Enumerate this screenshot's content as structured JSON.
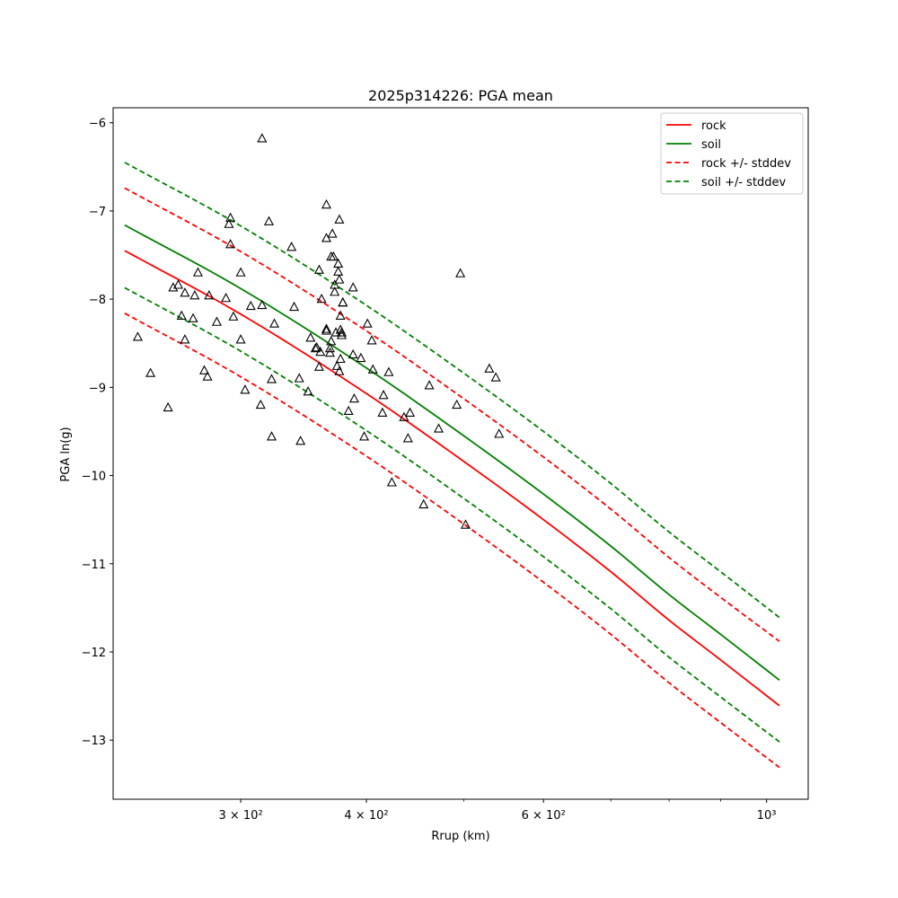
{
  "chart_data": {
    "type": "scatter",
    "title": "2025p314226: PGA mean",
    "xlabel": "Rrup (km)",
    "ylabel": "PGA ln(g)",
    "xscale": "log",
    "xlim": [
      224,
      1100
    ],
    "ylim": [
      -13.67,
      -5.83
    ],
    "x_major_ticks": [
      {
        "value": 300,
        "label": "3 × 10²"
      },
      {
        "value": 400,
        "label": "4 × 10²"
      },
      {
        "value": 600,
        "label": "6 × 10²"
      },
      {
        "value": 1000,
        "label": "10³"
      }
    ],
    "x_minor_ticks": [
      500,
      700,
      800,
      900
    ],
    "y_ticks": [
      -6,
      -7,
      -8,
      -9,
      -10,
      -11,
      -12,
      -13
    ],
    "y_tick_labels": [
      "−6",
      "−7",
      "−8",
      "−9",
      "−10",
      "−11",
      "−12",
      "−13"
    ],
    "grid": false,
    "legend_position": "top-right",
    "legend": [
      {
        "label": "rock",
        "color": "#ff0000",
        "dash": "solid"
      },
      {
        "label": "soil",
        "color": "#008000",
        "dash": "solid"
      },
      {
        "label": "rock +/- stddev",
        "color": "#ff0000",
        "dash": "dashed"
      },
      {
        "label": "soil +/- stddev",
        "color": "#008000",
        "dash": "dashed"
      }
    ],
    "lines": [
      {
        "name": "rock",
        "role": "mean",
        "color": "#ff0000",
        "dash": "solid",
        "x": [
          230,
          300,
          400,
          500,
          600,
          700,
          800,
          900,
          1030
        ],
        "y": [
          -7.45,
          -8.17,
          -9.07,
          -9.84,
          -10.5,
          -11.09,
          -11.64,
          -12.09,
          -12.61
        ]
      },
      {
        "role": "upper",
        "color": "#ff0000",
        "dash": "dashed",
        "x": [
          230,
          300,
          400,
          500,
          600,
          700,
          800,
          900,
          1030
        ],
        "y": [
          -6.74,
          -7.46,
          -8.36,
          -9.13,
          -9.79,
          -10.38,
          -10.93,
          -11.38,
          -11.88
        ]
      },
      {
        "role": "lower",
        "color": "#ff0000",
        "dash": "dashed",
        "x": [
          230,
          300,
          400,
          500,
          600,
          700,
          800,
          900,
          1030
        ],
        "y": [
          -8.16,
          -8.88,
          -9.78,
          -10.55,
          -11.21,
          -11.8,
          -12.35,
          -12.8,
          -13.31
        ]
      },
      {
        "name": "soil",
        "role": "mean",
        "color": "#008000",
        "dash": "solid",
        "x": [
          230,
          300,
          400,
          500,
          600,
          700,
          800,
          900,
          1030
        ],
        "y": [
          -7.16,
          -7.88,
          -8.78,
          -9.55,
          -10.21,
          -10.8,
          -11.35,
          -11.8,
          -12.32
        ]
      },
      {
        "role": "upper",
        "color": "#008000",
        "dash": "dashed",
        "x": [
          230,
          300,
          400,
          500,
          600,
          700,
          800,
          900,
          1030
        ],
        "y": [
          -6.45,
          -7.17,
          -8.07,
          -8.84,
          -9.5,
          -10.09,
          -10.64,
          -11.09,
          -11.61
        ]
      },
      {
        "role": "lower",
        "color": "#008000",
        "dash": "dashed",
        "x": [
          230,
          300,
          400,
          500,
          600,
          700,
          800,
          900,
          1030
        ],
        "y": [
          -7.87,
          -8.59,
          -9.49,
          -10.26,
          -10.92,
          -11.51,
          -12.06,
          -12.51,
          -13.02
        ]
      }
    ],
    "observations": {
      "marker": "triangle",
      "color": "#000000",
      "points": [
        [
          237,
          -8.43
        ],
        [
          244,
          -8.84
        ],
        [
          257,
          -7.87
        ],
        [
          260,
          -7.84
        ],
        [
          262,
          -8.19
        ],
        [
          264,
          -7.93
        ],
        [
          264,
          -8.46
        ],
        [
          269,
          -8.22
        ],
        [
          270,
          -7.96
        ],
        [
          272,
          -7.7
        ],
        [
          254,
          -9.23
        ],
        [
          276,
          -8.81
        ],
        [
          278,
          -8.88
        ],
        [
          279,
          -7.96
        ],
        [
          284,
          -8.26
        ],
        [
          290,
          -7.99
        ],
        [
          292,
          -7.15
        ],
        [
          293,
          -7.08
        ],
        [
          293,
          -7.38
        ],
        [
          295,
          -8.2
        ],
        [
          300,
          -7.7
        ],
        [
          300,
          -8.46
        ],
        [
          303,
          -9.03
        ],
        [
          307,
          -8.08
        ],
        [
          314,
          -9.2
        ],
        [
          315,
          -8.07
        ],
        [
          315,
          -6.18
        ],
        [
          320,
          -7.12
        ],
        [
          322,
          -8.91
        ],
        [
          322,
          -9.56
        ],
        [
          324,
          -8.28
        ],
        [
          337,
          -7.41
        ],
        [
          339,
          -8.09
        ],
        [
          343,
          -8.9
        ],
        [
          344,
          -9.61
        ],
        [
          350,
          -9.05
        ],
        [
          352,
          -8.44
        ],
        [
          356,
          -8.56
        ],
        [
          357,
          -8.55
        ],
        [
          360,
          -8.6
        ],
        [
          359,
          -8.77
        ],
        [
          359,
          -7.67
        ],
        [
          361,
          -8.0
        ],
        [
          365,
          -8.36
        ],
        [
          365,
          -8.34
        ],
        [
          365,
          -6.93
        ],
        [
          365,
          -7.31
        ],
        [
          368,
          -8.56
        ],
        [
          368,
          -8.61
        ],
        [
          369,
          -8.48
        ],
        [
          369,
          -7.52
        ],
        [
          370,
          -7.26
        ],
        [
          371,
          -7.52
        ],
        [
          372,
          -7.92
        ],
        [
          372,
          -7.84
        ],
        [
          373,
          -8.38
        ],
        [
          374,
          -8.76
        ],
        [
          375,
          -7.6
        ],
        [
          375,
          -7.69
        ],
        [
          376,
          -7.78
        ],
        [
          376,
          -8.82
        ],
        [
          377,
          -8.19
        ],
        [
          377,
          -8.35
        ],
        [
          378,
          -8.41
        ],
        [
          378,
          -8.38
        ],
        [
          379,
          -8.04
        ],
        [
          379,
          -8.04
        ],
        [
          376,
          -7.1
        ],
        [
          377,
          -8.68
        ],
        [
          384,
          -9.27
        ],
        [
          388,
          -8.63
        ],
        [
          388,
          -7.87
        ],
        [
          389,
          -9.13
        ],
        [
          395,
          -8.67
        ],
        [
          398,
          -9.56
        ],
        [
          401,
          -8.28
        ],
        [
          405,
          -8.47
        ],
        [
          406,
          -8.8
        ],
        [
          415,
          -9.29
        ],
        [
          416,
          -9.09
        ],
        [
          421,
          -8.83
        ],
        [
          424,
          -10.08
        ],
        [
          436,
          -9.34
        ],
        [
          440,
          -9.58
        ],
        [
          442,
          -9.29
        ],
        [
          456,
          -10.33
        ],
        [
          462,
          -8.98
        ],
        [
          472,
          -9.47
        ],
        [
          492,
          -9.2
        ],
        [
          496,
          -7.71
        ],
        [
          502,
          -10.56
        ],
        [
          530,
          -8.79
        ],
        [
          538,
          -8.89
        ],
        [
          542,
          -9.53
        ]
      ]
    }
  }
}
